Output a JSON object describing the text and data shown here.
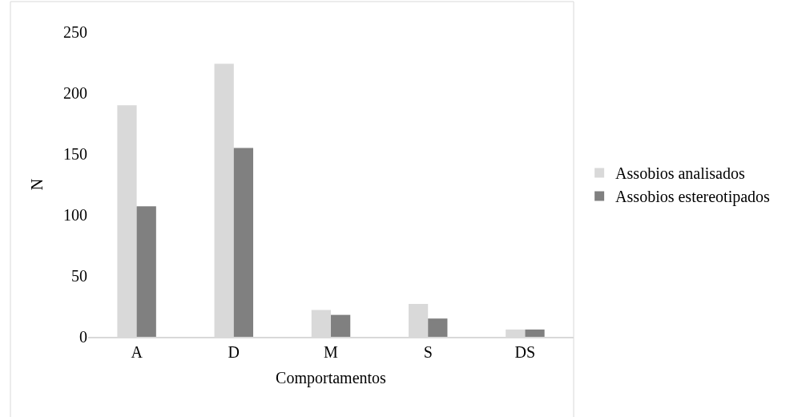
{
  "chart_data": {
    "type": "bar",
    "xlabel": "Comportamentos",
    "ylabel": "N",
    "categories": [
      "A",
      "D",
      "M",
      "S",
      "DS"
    ],
    "series": [
      {
        "name": "Assobios analisados",
        "color": "#d9d9d9",
        "values": [
          190,
          224,
          22,
          27,
          6
        ]
      },
      {
        "name": "Assobios estereotipados",
        "color": "#808080",
        "values": [
          107,
          155,
          18,
          15,
          6
        ]
      }
    ],
    "ylim": [
      0,
      250
    ],
    "yticks": [
      0,
      50,
      100,
      150,
      200,
      250
    ],
    "grid": false,
    "legend": "right"
  }
}
